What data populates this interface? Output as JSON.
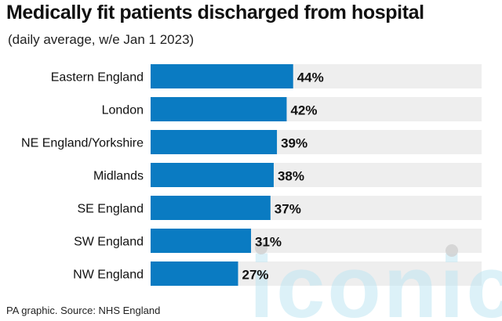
{
  "header": {
    "title": "Medically fit patients discharged from hospital",
    "subtitle": "(daily average, w/e Jan 1 2023)"
  },
  "footer": {
    "source": "PA graphic. Source: NHS England"
  },
  "watermark": {
    "text": "iconic"
  },
  "colors": {
    "bar": "#0a7bc2",
    "track": "#eeeeee",
    "watermark": "#bfe6f3"
  },
  "chart_data": {
    "type": "bar",
    "orientation": "horizontal",
    "title": "Medically fit patients discharged from hospital",
    "subtitle": "(daily average, w/e Jan 1 2023)",
    "categories": [
      "Eastern England",
      "London",
      "NE England/Yorkshire",
      "Midlands",
      "SE England",
      "SW England",
      "NW England"
    ],
    "values": [
      44,
      42,
      39,
      38,
      37,
      31,
      27
    ],
    "value_labels": [
      "44%",
      "42%",
      "39%",
      "38%",
      "37%",
      "31%",
      "27%"
    ],
    "unit": "%",
    "xlim": [
      0,
      100
    ],
    "grid": false,
    "legend": "none"
  }
}
